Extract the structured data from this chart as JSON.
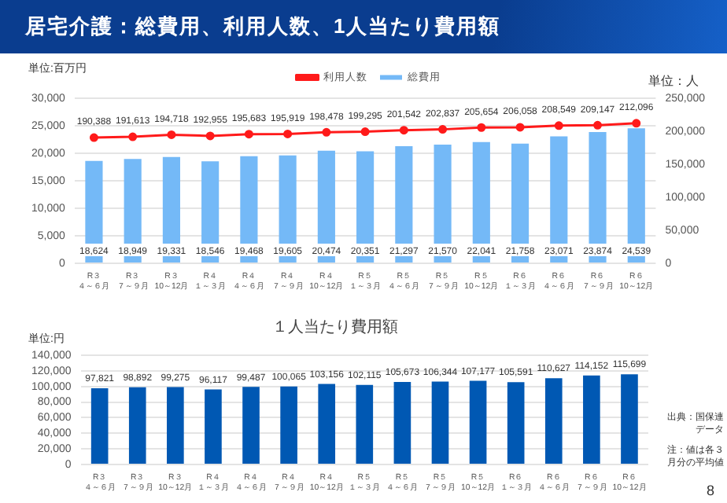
{
  "chart_data": [
    {
      "type": "bar",
      "title": "居宅介護：総費用、利用人数、1人当たり費用額",
      "ylabel": "単位:百万円",
      "y2label": "単位：人",
      "categories": [
        "R３４～６月",
        "R３７～９月",
        "R３10～12月",
        "R４１～３月",
        "R４４～６月",
        "R４７～９月",
        "R４10～12月",
        "R５１～３月",
        "R５４～６月",
        "R５７～９月",
        "R５10～12月",
        "R６１～３月",
        "R６４～６月",
        "R６７～９月",
        "R６10～12月"
      ],
      "series": [
        {
          "name": "総費用",
          "type": "bar",
          "color": "#74b9f7",
          "values": [
            18624,
            18949,
            19331,
            18546,
            19468,
            19605,
            20474,
            20351,
            21297,
            21570,
            22041,
            21758,
            23071,
            23874,
            24539
          ],
          "value_labels": [
            "18,624",
            "18,949",
            "19,331",
            "18,546",
            "19,468",
            "19,605",
            "20,474",
            "20,351",
            "21,297",
            "21,570",
            "22,041",
            "21,758",
            "23,071",
            "23,874",
            "24,539"
          ]
        },
        {
          "name": "利用人数",
          "type": "line",
          "axis": "y2",
          "color": "#ff1a1a",
          "values": [
            190388,
            191613,
            194718,
            192955,
            195683,
            195919,
            198478,
            199295,
            201542,
            202837,
            205654,
            206058,
            208549,
            209147,
            212096
          ],
          "value_labels": [
            "190,388",
            "191,613",
            "194,718",
            "192,955",
            "195,683",
            "195,919",
            "198,478",
            "199,295",
            "201,542",
            "202,837",
            "205,654",
            "206,058",
            "208,549",
            "209,147",
            "212,096"
          ]
        }
      ],
      "ylim": [
        0,
        30000
      ],
      "yticks": [
        0,
        {
          "value": 5000,
          "label": "5,000"
        },
        {
          "value": 10000,
          "label": "10,000"
        },
        {
          "value": 15000,
          "label": "15,000"
        },
        {
          "value": 20000,
          "label": "20,000"
        },
        {
          "value": 25000,
          "label": "25,000"
        },
        {
          "value": 30000,
          "label": "30,000"
        }
      ],
      "y2lim": [
        0,
        250000
      ],
      "y2ticks": [
        0,
        {
          "value": 50000,
          "label": "50,000"
        },
        {
          "value": 100000,
          "label": "100,000"
        },
        {
          "value": 150000,
          "label": "150,000"
        },
        {
          "value": 200000,
          "label": "200,000"
        },
        {
          "value": 250000,
          "label": "250,000"
        }
      ],
      "grid": "y",
      "legend": "top",
      "marker": "circle"
    },
    {
      "type": "bar",
      "title": "１人当たり費用額",
      "ylabel": "単位:円",
      "categories": [
        "R３４～６月",
        "R３７～９月",
        "R３10～12月",
        "R４１～３月",
        "R４４～６月",
        "R４７～９月",
        "R４10～12月",
        "R５１～３月",
        "R５４～６月",
        "R５７～９月",
        "R５10～12月",
        "R６１～３月",
        "R６４～６月",
        "R６７～９月",
        "R６10～12月"
      ],
      "values": [
        97821,
        98892,
        99275,
        96117,
        99487,
        100065,
        103156,
        102115,
        105673,
        106344,
        107177,
        105591,
        110627,
        114152,
        115699
      ],
      "color": "#0058b3",
      "value_labels": [
        "97,821",
        "98,892",
        "99,275",
        "96,117",
        "99,487",
        "100,065",
        "103,156",
        "102,115",
        "105,673",
        "106,344",
        "107,177",
        "105,591",
        "110,627",
        "114,152",
        "115,699"
      ],
      "ylim": [
        0,
        140000
      ],
      "yticks": [
        0,
        {
          "value": 20000,
          "label": "20,000"
        },
        {
          "value": 40000,
          "label": "40,000"
        },
        {
          "value": 60000,
          "label": "60,000"
        },
        {
          "value": 80000,
          "label": "80,000"
        },
        {
          "value": 100000,
          "label": "100,000"
        },
        {
          "value": 120000,
          "label": "120,000"
        },
        {
          "value": 140000,
          "label": "140,000"
        }
      ],
      "grid": "y",
      "annotations": [
        "出典：国保連データ",
        "注：値は各３月分の平均値",
        "8"
      ]
    }
  ]
}
